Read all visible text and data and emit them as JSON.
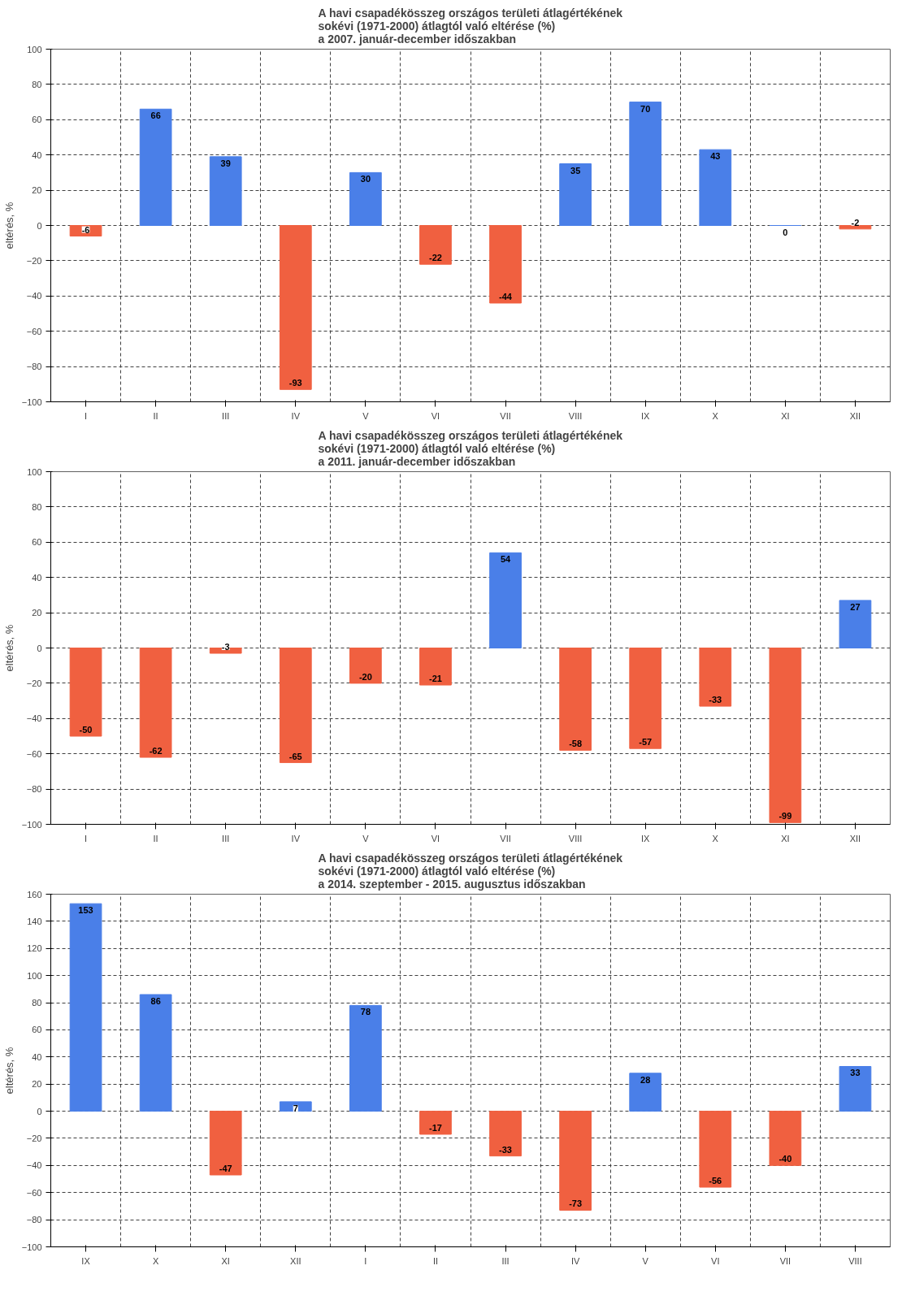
{
  "chart_data": [
    {
      "type": "bar",
      "title": "A havi csapadékösszeg országos területi átlagértékének\nsokévi (1971-2000) átlagtól való eltérése (%)\na 2007. január-december időszakban",
      "ylabel": "eltérés, %",
      "categories": [
        "I",
        "II",
        "III",
        "IV",
        "V",
        "VI",
        "VII",
        "VIII",
        "IX",
        "X",
        "XI",
        "XII"
      ],
      "values": [
        -6,
        66,
        39,
        -93,
        30,
        -22,
        -44,
        35,
        70,
        43,
        0,
        -2
      ],
      "colors": [
        "#f06040",
        "#4a7fe8",
        "#4a7fe8",
        "#f06040",
        "#4a7fe8",
        "#f06040",
        "#f06040",
        "#4a7fe8",
        "#4a7fe8",
        "#4a7fe8",
        "#4a7fe8",
        "#f06040"
      ],
      "ylim": [
        -100,
        100
      ],
      "yticks": [
        -100,
        -80,
        -60,
        -40,
        -20,
        0,
        20,
        40,
        60,
        80,
        100
      ],
      "grid": true,
      "data_labels": true
    },
    {
      "type": "bar",
      "title": "A havi csapadékösszeg országos területi átlagértékének\nsokévi (1971-2000) átlagtól való eltérése (%)\na 2011. január-december időszakban",
      "ylabel": "eltérés, %",
      "categories": [
        "I",
        "II",
        "III",
        "IV",
        "V",
        "VI",
        "VII",
        "VIII",
        "IX",
        "X",
        "XI",
        "XII"
      ],
      "values": [
        -50,
        -62,
        -3,
        -65,
        -20,
        -21,
        54,
        -58,
        -57,
        -33,
        -99,
        27
      ],
      "colors": [
        "#f06040",
        "#f06040",
        "#f06040",
        "#f06040",
        "#f06040",
        "#f06040",
        "#4a7fe8",
        "#f06040",
        "#f06040",
        "#f06040",
        "#f06040",
        "#4a7fe8"
      ],
      "ylim": [
        -100,
        100
      ],
      "yticks": [
        -100,
        -80,
        -60,
        -40,
        -20,
        0,
        20,
        40,
        60,
        80,
        100
      ],
      "grid": true,
      "data_labels": true
    },
    {
      "type": "bar",
      "title": "A havi csapadékösszeg országos területi átlagértékének\nsokévi (1971-2000) átlagtól való eltérése (%)\na 2014. szeptember - 2015. augusztus időszakban",
      "ylabel": "eltérés, %",
      "categories": [
        "IX",
        "X",
        "XI",
        "XII",
        "I",
        "II",
        "III",
        "IV",
        "V",
        "VI",
        "VII",
        "VIII"
      ],
      "values": [
        153,
        86,
        -47,
        7,
        78,
        -17,
        -33,
        -73,
        28,
        -56,
        -40,
        33
      ],
      "colors": [
        "#4a7fe8",
        "#4a7fe8",
        "#f06040",
        "#4a7fe8",
        "#4a7fe8",
        "#f06040",
        "#f06040",
        "#f06040",
        "#4a7fe8",
        "#f06040",
        "#f06040",
        "#4a7fe8"
      ],
      "ylim": [
        -100,
        160
      ],
      "yticks": [
        -100,
        -80,
        -60,
        -40,
        -20,
        0,
        20,
        40,
        60,
        80,
        100,
        120,
        140,
        160
      ],
      "grid": true,
      "data_labels": true
    }
  ]
}
